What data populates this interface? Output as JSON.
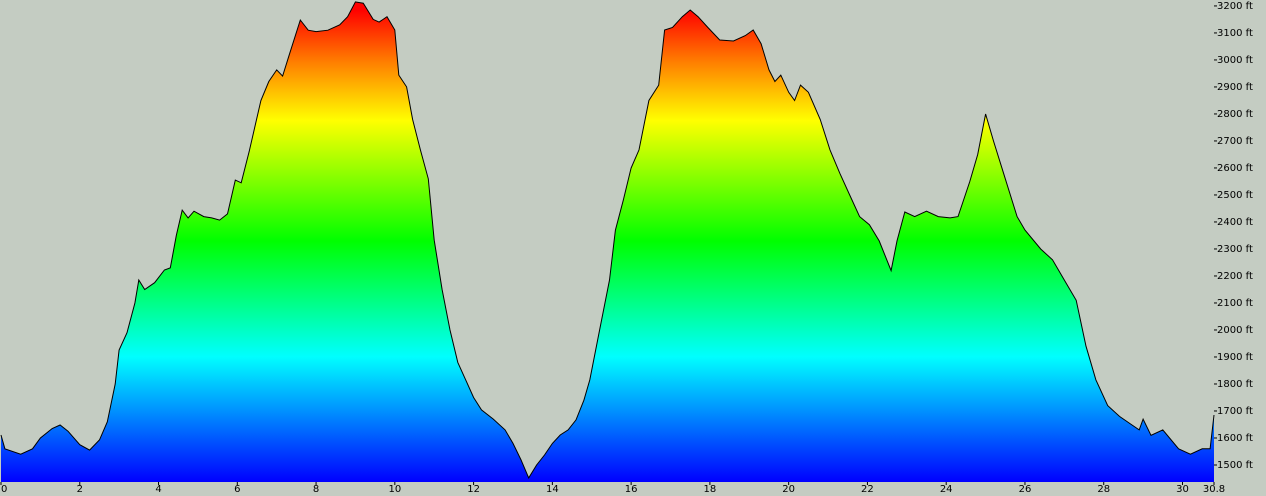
{
  "chart_data": {
    "type": "area",
    "xlim": [
      0,
      30.8
    ],
    "ylim": [
      1437,
      3222
    ],
    "xticks": [
      0,
      2,
      4,
      6,
      8,
      10,
      12,
      14,
      16,
      18,
      20,
      22,
      24,
      26,
      28,
      30,
      30.8
    ],
    "yticks": [
      {
        "value": 1500,
        "label": "1500 ft"
      },
      {
        "value": 1600,
        "label": "1600 ft"
      },
      {
        "value": 1700,
        "label": "1700 ft"
      },
      {
        "value": 1800,
        "label": "1800 ft"
      },
      {
        "value": 1900,
        "label": "1900 ft"
      },
      {
        "value": 2000,
        "label": "2000 ft"
      },
      {
        "value": 2100,
        "label": "2100 ft"
      },
      {
        "value": 2200,
        "label": "2200 ft"
      },
      {
        "value": 2300,
        "label": "2300 ft"
      },
      {
        "value": 2400,
        "label": "2400 ft"
      },
      {
        "value": 2500,
        "label": "2500 ft"
      },
      {
        "value": 2600,
        "label": "2600 ft"
      },
      {
        "value": 2700,
        "label": "2700 ft"
      },
      {
        "value": 2800,
        "label": "2800 ft"
      },
      {
        "value": 2900,
        "label": "2900 ft"
      },
      {
        "value": 3000,
        "label": "3000 ft"
      },
      {
        "value": 3100,
        "label": "3100 ft"
      },
      {
        "value": 3200,
        "label": "3200 ft"
      }
    ],
    "x": [
      0,
      0.1,
      0.5,
      0.8,
      1.0,
      1.3,
      1.5,
      1.7,
      2.0,
      2.25,
      2.5,
      2.7,
      2.9,
      3.0,
      3.2,
      3.4,
      3.5,
      3.65,
      3.9,
      4.15,
      4.3,
      4.45,
      4.6,
      4.75,
      4.9,
      5.15,
      5.35,
      5.55,
      5.75,
      5.95,
      6.1,
      6.3,
      6.6,
      6.8,
      7.0,
      7.15,
      7.3,
      7.6,
      7.8,
      8.0,
      8.3,
      8.6,
      8.8,
      9.0,
      9.2,
      9.45,
      9.6,
      9.8,
      10.0,
      10.1,
      10.3,
      10.45,
      10.65,
      10.85,
      11.0,
      11.2,
      11.4,
      11.6,
      11.8,
      12.0,
      12.2,
      12.5,
      12.8,
      13.0,
      13.2,
      13.4,
      13.6,
      13.8,
      14.0,
      14.2,
      14.4,
      14.6,
      14.8,
      14.95,
      15.2,
      15.45,
      15.6,
      15.8,
      16.0,
      16.2,
      16.45,
      16.7,
      16.85,
      17.05,
      17.3,
      17.5,
      17.7,
      17.95,
      18.25,
      18.6,
      18.9,
      19.1,
      19.3,
      19.5,
      19.65,
      19.8,
      20.0,
      20.15,
      20.3,
      20.5,
      20.8,
      21.05,
      21.3,
      21.55,
      21.8,
      22.05,
      22.3,
      22.6,
      22.75,
      22.95,
      23.2,
      23.5,
      23.8,
      24.1,
      24.3,
      24.6,
      24.8,
      25.0,
      25.2,
      25.5,
      25.8,
      26.0,
      26.4,
      26.7,
      27.0,
      27.3,
      27.55,
      27.8,
      28.1,
      28.4,
      28.7,
      28.9,
      29.0,
      29.2,
      29.5,
      29.9,
      30.2,
      30.5,
      30.7,
      30.8
    ],
    "values": [
      1611,
      1560,
      1540,
      1560,
      1600,
      1635,
      1648,
      1625,
      1575,
      1555,
      1593,
      1660,
      1800,
      1926,
      1990,
      2100,
      2185,
      2150,
      2175,
      2222,
      2230,
      2350,
      2444,
      2415,
      2440,
      2420,
      2415,
      2407,
      2430,
      2555,
      2545,
      2660,
      2850,
      2920,
      2963,
      2940,
      3010,
      3148,
      3110,
      3105,
      3110,
      3130,
      3160,
      3215,
      3210,
      3150,
      3140,
      3160,
      3111,
      2944,
      2900,
      2780,
      2667,
      2560,
      2333,
      2150,
      2000,
      1880,
      1815,
      1750,
      1704,
      1670,
      1630,
      1580,
      1520,
      1452,
      1500,
      1537,
      1580,
      1611,
      1630,
      1667,
      1740,
      1815,
      2000,
      2185,
      2370,
      2481,
      2600,
      2667,
      2850,
      2907,
      3111,
      3120,
      3160,
      3185,
      3160,
      3120,
      3074,
      3070,
      3090,
      3111,
      3060,
      2963,
      2920,
      2944,
      2880,
      2850,
      2907,
      2880,
      2780,
      2667,
      2580,
      2500,
      2420,
      2390,
      2330,
      2220,
      2330,
      2437,
      2420,
      2440,
      2420,
      2415,
      2420,
      2550,
      2650,
      2800,
      2700,
      2560,
      2420,
      2370,
      2300,
      2260,
      2185,
      2110,
      1940,
      1815,
      1720,
      1680,
      1650,
      1630,
      1670,
      1610,
      1630,
      1560,
      1540,
      1560,
      1560,
      1685
    ]
  }
}
